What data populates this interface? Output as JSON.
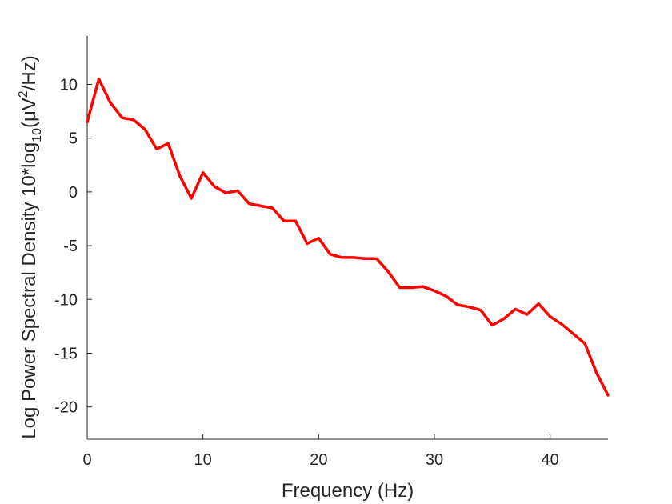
{
  "chart_data": {
    "type": "line",
    "title": "",
    "xlabel": "Frequency (Hz)",
    "ylabel": {
      "prefix": "Log Power Spectral Density 10*log",
      "sub": "10",
      "mid": "(μV",
      "sup": "2",
      "suffix": "/Hz)"
    },
    "xlim": [
      0,
      45
    ],
    "ylim": [
      -23,
      14.5
    ],
    "xticks": [
      0,
      10,
      20,
      30,
      40
    ],
    "yticks": [
      10,
      5,
      0,
      -5,
      -10,
      -15,
      -20
    ],
    "xtick_labels": [
      "0",
      "10",
      "20",
      "30",
      "40"
    ],
    "ytick_labels": [
      "10",
      "5",
      "0",
      "-5",
      "-10",
      "-15",
      "-20"
    ],
    "grid": false,
    "series": [
      {
        "color": "#ff0000",
        "x": [
          0,
          1,
          2,
          3,
          4,
          5,
          6,
          7,
          8,
          9,
          10,
          11,
          12,
          13,
          14,
          15,
          16,
          17,
          18,
          19,
          20,
          21,
          22,
          23,
          24,
          25,
          26,
          27,
          28,
          29,
          30,
          31,
          32,
          33,
          34,
          35,
          36,
          37,
          38,
          39,
          40,
          41,
          42,
          43,
          44,
          45
        ],
        "y": [
          6.5,
          10.5,
          8.3,
          6.9,
          6.7,
          5.8,
          4.0,
          4.5,
          1.5,
          -0.6,
          1.8,
          0.5,
          -0.1,
          0.1,
          -1.1,
          -1.3,
          -1.5,
          -2.7,
          -2.7,
          -4.8,
          -4.3,
          -5.8,
          -6.1,
          -6.1,
          -6.2,
          -6.2,
          -7.4,
          -8.9,
          -8.9,
          -8.8,
          -9.2,
          -9.7,
          -10.5,
          -10.7,
          -11.0,
          -12.4,
          -11.8,
          -10.9,
          -11.4,
          -10.4,
          -11.6,
          -12.3,
          -13.2,
          -14.1,
          -16.8,
          -18.9
        ]
      }
    ]
  }
}
